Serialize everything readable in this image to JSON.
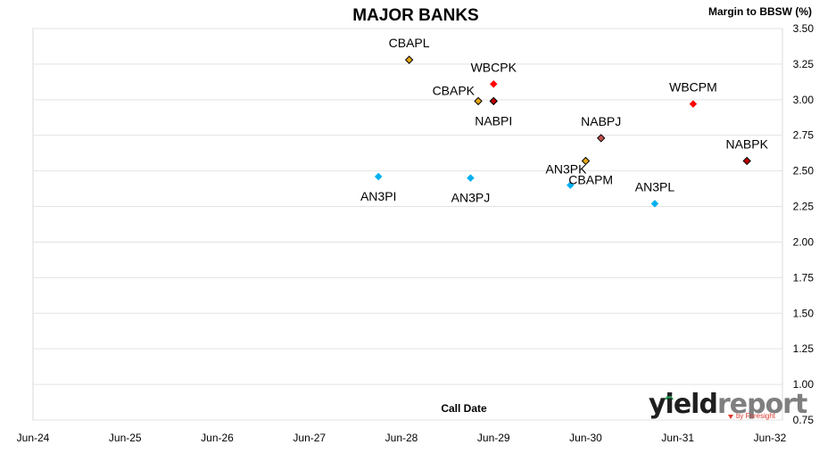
{
  "chart_data": {
    "type": "scatter",
    "title": "MAJOR BANKS",
    "ylabel": "Margin to BBSW (%)",
    "xlabel": "Call Date",
    "x_ticks": [
      "Jun-24",
      "Jun-25",
      "Jun-26",
      "Jun-27",
      "Jun-28",
      "Jun-29",
      "Jun-30",
      "Jun-31",
      "Jun-32"
    ],
    "xlim": [
      "Jun-24",
      "Jun-32"
    ],
    "y_ticks": [
      "3.50",
      "3.25",
      "3.00",
      "2.75",
      "2.50",
      "2.25",
      "2.00",
      "1.75",
      "1.50",
      "1.25",
      "1.00",
      "0.75"
    ],
    "ylim": [
      0.75,
      3.5
    ],
    "grid": "horizontal",
    "legend": "none",
    "points": [
      {
        "label": "CBAPL",
        "x": "2028-07",
        "y": 3.28,
        "color": "#e6a817",
        "outline": true,
        "label_pos": "above"
      },
      {
        "label": "WBCPK",
        "x": "2029-06",
        "y": 3.11,
        "color": "#ff0000",
        "outline": false,
        "label_pos": "above"
      },
      {
        "label": "CBAPK",
        "x": "2029-04",
        "y": 2.99,
        "color": "#e6a817",
        "outline": true,
        "label_pos": "above-left"
      },
      {
        "label": "NABPI",
        "x": "2029-06",
        "y": 2.99,
        "color": "#c00000",
        "outline": true,
        "label_pos": "below"
      },
      {
        "label": "WBCPM",
        "x": "2031-08",
        "y": 2.97,
        "color": "#ff0000",
        "outline": false,
        "label_pos": "above"
      },
      {
        "label": "NABPJ",
        "x": "2030-08",
        "y": 2.73,
        "color": "#c0504d",
        "outline": true,
        "label_pos": "above"
      },
      {
        "label": "NABPK",
        "x": "2032-03",
        "y": 2.57,
        "color": "#c00000",
        "outline": true,
        "label_pos": "above"
      },
      {
        "label": "AN3PK",
        "x": "2030-06",
        "y": 2.57,
        "color": "#e6a817",
        "outline": true,
        "label_pos": "below-left"
      },
      {
        "label": "CBAPM",
        "x": "2030-04",
        "y": 2.4,
        "color": "#00b0f0",
        "outline": false,
        "label_pos": "below-right"
      },
      {
        "label": "AN3PI",
        "x": "2028-03",
        "y": 2.46,
        "color": "#00b0f0",
        "outline": false,
        "label_pos": "below"
      },
      {
        "label": "AN3PJ",
        "x": "2029-03",
        "y": 2.45,
        "color": "#00b0f0",
        "outline": false,
        "label_pos": "below"
      },
      {
        "label": "AN3PL",
        "x": "2031-03",
        "y": 2.27,
        "color": "#00b0f0",
        "outline": false,
        "label_pos": "above"
      }
    ]
  },
  "logo": {
    "text_main_a": "yield",
    "text_main_b": "report",
    "text_sub": "by Foresight",
    "color_a": "#1f1f1f",
    "color_b": "#7f7f7f",
    "accent": "#e03a2f",
    "accent2": "#2aa05a"
  }
}
